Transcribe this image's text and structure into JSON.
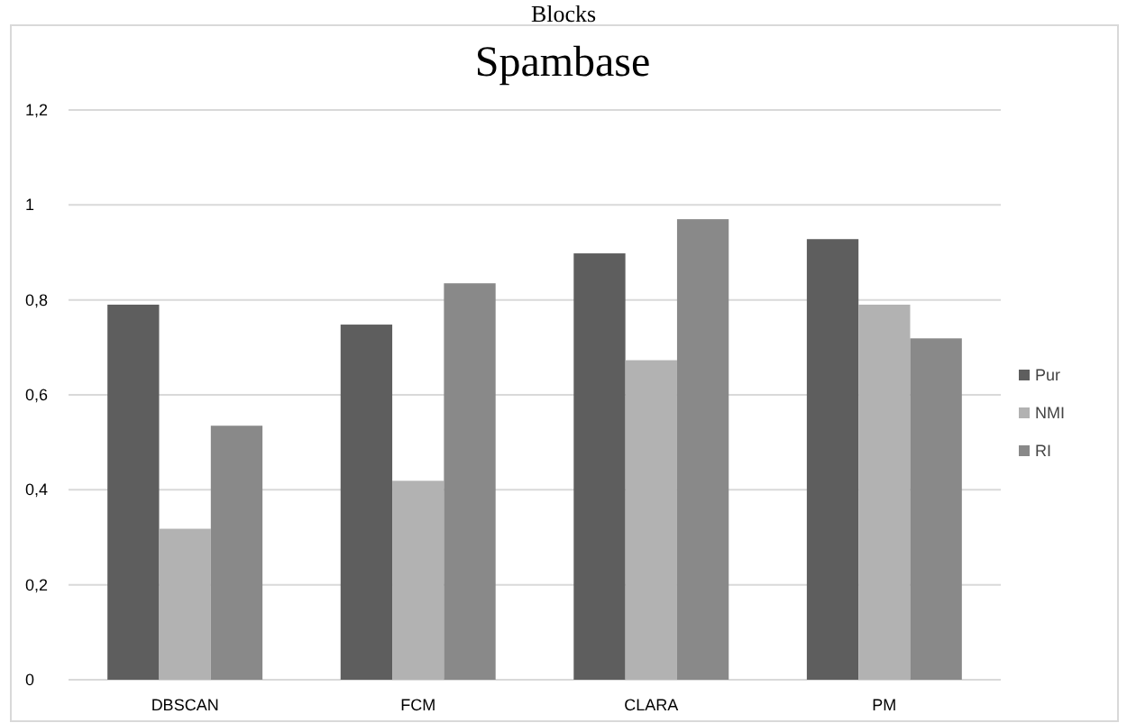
{
  "chart_data": {
    "type": "bar",
    "title": "Spambase",
    "annotations": [
      "Blocks"
    ],
    "categories": [
      "DBSCAN",
      "FCM",
      "CLARA",
      "PM"
    ],
    "series": [
      {
        "name": "Pur",
        "color": "#5e5e5e",
        "values": [
          0.79,
          0.748,
          0.898,
          0.928
        ]
      },
      {
        "name": "NMI",
        "color": "#b2b2b2",
        "values": [
          0.318,
          0.419,
          0.673,
          0.79
        ]
      },
      {
        "name": "RI",
        "color": "#898989",
        "values": [
          0.535,
          0.835,
          0.97,
          0.719
        ]
      }
    ],
    "ylim": [
      0,
      1.2
    ],
    "yticks": [
      0,
      {
        "value": 0.2,
        "label": "0,2"
      },
      {
        "value": 0.4,
        "label": "0,4"
      },
      {
        "value": 0.6,
        "label": "0,6"
      },
      {
        "value": 0.8,
        "label": "0,8"
      },
      1,
      {
        "value": 1.2,
        "label": "1,2"
      }
    ],
    "grid": "y",
    "legend": "right"
  }
}
